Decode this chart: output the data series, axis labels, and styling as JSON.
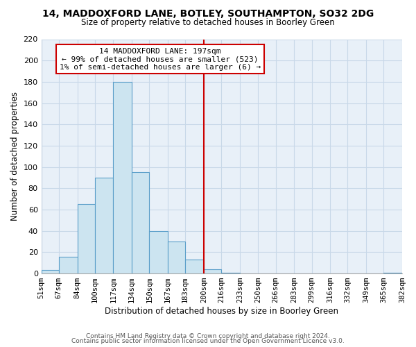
{
  "title": "14, MADDOXFORD LANE, BOTLEY, SOUTHAMPTON, SO32 2DG",
  "subtitle": "Size of property relative to detached houses in Boorley Green",
  "xlabel": "Distribution of detached houses by size in Boorley Green",
  "ylabel": "Number of detached properties",
  "bar_color": "#cce4f0",
  "bar_edge_color": "#5a9ec9",
  "bin_edges": [
    51,
    67,
    84,
    100,
    117,
    134,
    150,
    167,
    183,
    200,
    216,
    233,
    250,
    266,
    283,
    299,
    316,
    332,
    349,
    365,
    382
  ],
  "bin_labels": [
    "51sqm",
    "67sqm",
    "84sqm",
    "100sqm",
    "117sqm",
    "134sqm",
    "150sqm",
    "167sqm",
    "183sqm",
    "200sqm",
    "216sqm",
    "233sqm",
    "250sqm",
    "266sqm",
    "283sqm",
    "299sqm",
    "316sqm",
    "332sqm",
    "349sqm",
    "365sqm",
    "382sqm"
  ],
  "counts": [
    3,
    16,
    65,
    90,
    180,
    95,
    40,
    30,
    13,
    4,
    1,
    0,
    0,
    0,
    0,
    0,
    0,
    0,
    0,
    1
  ],
  "vline_x": 200,
  "vline_color": "#cc0000",
  "annotation_line1": "14 MADDOXFORD LANE: 197sqm",
  "annotation_line2": "← 99% of detached houses are smaller (523)",
  "annotation_line3": "1% of semi-detached houses are larger (6) →",
  "ylim": [
    0,
    220
  ],
  "yticks": [
    0,
    20,
    40,
    60,
    80,
    100,
    120,
    140,
    160,
    180,
    200,
    220
  ],
  "footer_line1": "Contains HM Land Registry data © Crown copyright and database right 2024.",
  "footer_line2": "Contains public sector information licensed under the Open Government Licence v3.0.",
  "background_color": "#ffffff",
  "grid_color": "#c8d8e8",
  "plot_bg_color": "#e8f0f8"
}
